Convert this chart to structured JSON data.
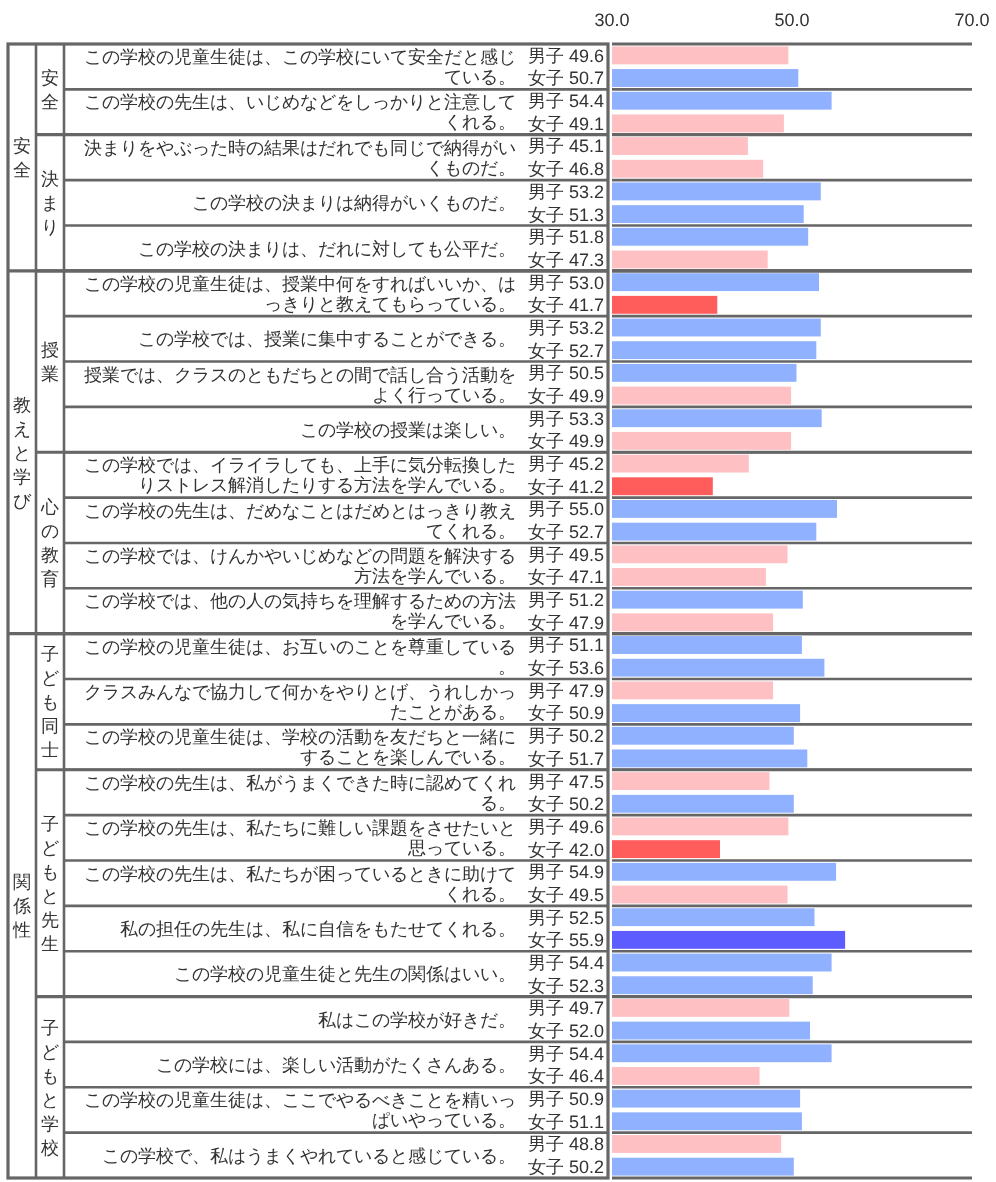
{
  "chart_data": {
    "type": "bar",
    "orientation": "horizontal",
    "categories": [
      "この学校の児童生徒は、この学校にいて安全だと感じている。",
      "この学校の先生は、いじめなどをしっかりと注意してくれる。",
      "決まりをやぶった時の結果はだれでも同じで納得がいくものだ。",
      "この学校の決まりは納得がいくものだ。",
      "この学校の決まりは、だれに対しても公平だ。",
      "この学校の児童生徒は、授業中何をすればいいか、はっきりと教えてもらっている。",
      "この学校では、授業に集中することができる。",
      "授業では、クラスのともだちとの間で話し合う活動をよく行っている。",
      "この学校の授業は楽しい。",
      "この学校では、イライラしても、上手に気分転換したりストレス解消したりする方法を学んでいる。",
      "この学校の先生は、だめなことはだめとはっきり教えてくれる。",
      "この学校では、けんかやいじめなどの問題を解決する方法を学んでいる。",
      "この学校では、他の人の気持ちを理解するための方法を学んでいる。",
      "この学校の児童生徒は、お互いのことを尊重している。",
      "クラスみんなで協力して何かをやりとげ、うれしかったことがある。",
      "この学校の児童生徒は、学校の活動を友だちと一緒にすることを楽しんでいる。",
      "この学校の先生は、私がうまくできた時に認めてくれる。",
      "この学校の先生は、私たちに難しい課題をさせたいと思っている。",
      "この学校の先生は、私たちが困っているときに助けてくれる。",
      "私の担任の先生は、私に自信をもたせてくれる。",
      "この学校の児童生徒と先生の関係はいい。",
      "私はこの学校が好きだ。",
      "この学校には、楽しい活動がたくさんある。",
      "この学校の児童生徒は、ここでやるべきことを精いっぱいやっている。",
      "この学校で、私はうまくやれていると感じている。"
    ],
    "series": [
      {
        "name": "男子",
        "values": [
          49.6,
          54.4,
          45.1,
          53.2,
          51.8,
          53.0,
          53.2,
          50.5,
          53.3,
          45.2,
          55.0,
          49.5,
          51.2,
          51.1,
          47.9,
          50.2,
          47.5,
          49.6,
          54.9,
          52.5,
          54.4,
          49.7,
          54.4,
          50.9,
          48.8
        ],
        "value_labels": [
          "49.6",
          "54.4",
          "45.1",
          "53.2",
          "51.8",
          "53.0",
          "53.2",
          "50.5",
          "53.3",
          "45.2",
          "55.0",
          "49.5",
          "51.2",
          "51.1",
          "47.9",
          "50.2",
          "47.5",
          "49.6",
          "54.9",
          "52.5",
          "54.4",
          "49.7",
          "54.4",
          "50.9",
          "48.8"
        ],
        "colors": [
          "#ffc0c4",
          "#8fb1ff",
          "#ffc0c4",
          "#8fb1ff",
          "#8fb1ff",
          "#8fb1ff",
          "#8fb1ff",
          "#8fb1ff",
          "#8fb1ff",
          "#ffc0c4",
          "#8fb1ff",
          "#ffc0c4",
          "#8fb1ff",
          "#8fb1ff",
          "#ffc0c4",
          "#8fb1ff",
          "#ffc0c4",
          "#ffc0c4",
          "#8fb1ff",
          "#8fb1ff",
          "#8fb1ff",
          "#ffc0c4",
          "#8fb1ff",
          "#8fb1ff",
          "#ffc0c4"
        ]
      },
      {
        "name": "女子",
        "values": [
          50.7,
          49.1,
          46.8,
          51.3,
          47.3,
          41.7,
          52.7,
          49.9,
          49.9,
          41.2,
          52.7,
          47.1,
          47.9,
          53.6,
          50.9,
          51.7,
          50.2,
          42.0,
          49.5,
          55.9,
          52.3,
          52.0,
          46.4,
          51.1,
          50.2
        ],
        "value_labels": [
          "50.7",
          "49.1",
          "46.8",
          "51.3",
          "47.3",
          "41.7",
          "52.7",
          "49.9",
          "49.9",
          "41.2",
          "52.7",
          "47.1",
          "47.9",
          "53.6",
          "50.9",
          "51.7",
          "50.2",
          "42.0",
          "49.5",
          "55.9",
          "52.3",
          "52.0",
          "46.4",
          "51.1",
          "50.2"
        ],
        "colors": [
          "#8fb1ff",
          "#ffc0c4",
          "#ffc0c4",
          "#8fb1ff",
          "#ffc0c4",
          "#ff5c5c",
          "#8fb1ff",
          "#ffc0c4",
          "#ffc0c4",
          "#ff5c5c",
          "#8fb1ff",
          "#ffc0c4",
          "#ffc0c4",
          "#8fb1ff",
          "#8fb1ff",
          "#8fb1ff",
          "#8fb1ff",
          "#ff5c5c",
          "#ffc0c4",
          "#5c5cff",
          "#8fb1ff",
          "#8fb1ff",
          "#ffc0c4",
          "#8fb1ff",
          "#8fb1ff"
        ]
      }
    ],
    "xlim": [
      30,
      70
    ],
    "xticks": [
      {
        "value": 30,
        "label": "30.0"
      },
      {
        "value": 50,
        "label": "50.0"
      },
      {
        "value": 70,
        "label": "70.0"
      }
    ],
    "annotations": [
      "安全",
      "安全",
      "決まり",
      "教えと学び",
      "授業",
      "心の教育",
      "関係性",
      "子ども同士",
      "子どもと先生",
      "子どもと学校"
    ]
  }
}
